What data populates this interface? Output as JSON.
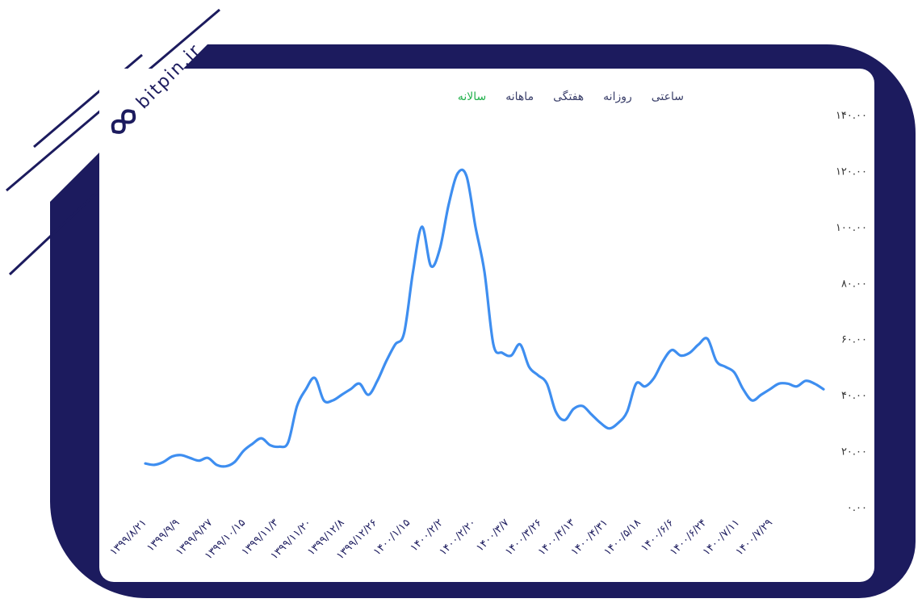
{
  "brand": {
    "name": "bitpin.ir"
  },
  "tabs": [
    {
      "label": "ساعتی",
      "active": false
    },
    {
      "label": "روزانه",
      "active": false
    },
    {
      "label": "هفتگی",
      "active": false
    },
    {
      "label": "ماهانه",
      "active": false
    },
    {
      "label": "سالانه",
      "active": true
    }
  ],
  "colors": {
    "frame": "#1c1b5e",
    "line": "#3e8ef0",
    "active_tab": "#22b14c"
  },
  "chart_data": {
    "type": "line",
    "ylim": [
      0,
      140
    ],
    "y_ticks": [
      {
        "value": 0,
        "label": "۰.۰۰"
      },
      {
        "value": 20,
        "label": "۲۰.۰۰"
      },
      {
        "value": 40,
        "label": "۴۰.۰۰"
      },
      {
        "value": 60,
        "label": "۶۰.۰۰"
      },
      {
        "value": 80,
        "label": "۸۰.۰۰"
      },
      {
        "value": 100,
        "label": "۱۰۰.۰۰"
      },
      {
        "value": 120,
        "label": "۱۲۰.۰۰"
      },
      {
        "value": 140,
        "label": "۱۴۰.۰۰"
      }
    ],
    "x_ticks": [
      "۱۳۹۹/۸/۲۱",
      "۱۳۹۹/۹/۹",
      "۱۳۹۹/۹/۲۷",
      "۱۳۹۹/۱۰/۱۵",
      "۱۳۹۹/۱۱/۳",
      "۱۳۹۹/۱۱/۲۰",
      "۱۳۹۹/۱۲/۸",
      "۱۳۹۹/۱۲/۲۶",
      "۱۴۰۰/۱/۱۵",
      "۱۴۰۰/۲/۲",
      "۱۴۰۰/۲/۲۰",
      "۱۴۰۰/۳/۷",
      "۱۴۰۰/۳/۲۶",
      "۱۴۰۰/۴/۱۳",
      "۱۴۰۰/۴/۳۱",
      "۱۴۰۰/۵/۱۸",
      "۱۴۰۰/۶/۶",
      "۱۴۰۰/۶/۲۴",
      "۱۴۰۰/۷/۱۱",
      "۱۴۰۰/۷/۲۹"
    ],
    "series": [
      {
        "values": [
          15.5,
          15,
          16,
          18,
          18.5,
          17.5,
          16.5,
          17.5,
          15,
          14.5,
          16,
          20,
          22.5,
          24.5,
          22,
          21.5,
          23,
          36,
          42,
          46,
          38,
          38,
          40,
          42,
          44,
          40,
          45,
          52,
          58,
          62,
          84,
          100,
          86,
          92,
          108,
          119,
          118,
          100,
          84,
          58,
          55,
          54,
          58,
          50,
          47,
          44,
          34,
          31,
          35,
          36,
          33,
          30,
          28,
          30,
          34,
          44,
          43,
          46,
          52,
          56,
          54,
          55,
          58,
          60,
          52,
          50,
          48,
          42,
          38,
          40,
          42,
          44,
          44,
          43,
          45,
          44,
          42
        ]
      }
    ]
  }
}
